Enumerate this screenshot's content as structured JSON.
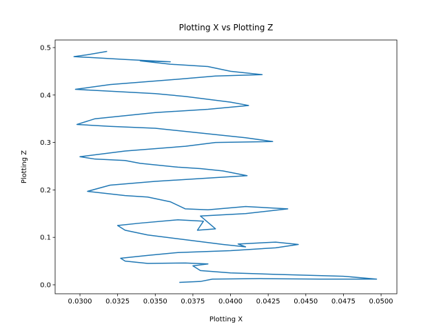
{
  "chart_data": {
    "type": "line",
    "title": "Plotting X vs Plotting Z",
    "x_label": "Plotting X",
    "y_label": "Plotting Z",
    "x": [
      0.0366,
      0.038,
      0.0388,
      0.042,
      0.046,
      0.0497,
      0.0475,
      0.043,
      0.04,
      0.038,
      0.0375,
      0.0385,
      0.037,
      0.0345,
      0.033,
      0.0327,
      0.0345,
      0.0365,
      0.04,
      0.043,
      0.0445,
      0.043,
      0.0405,
      0.041,
      0.0395,
      0.037,
      0.0345,
      0.033,
      0.0325,
      0.034,
      0.0365,
      0.0382,
      0.0378,
      0.039,
      0.038,
      0.041,
      0.0438,
      0.041,
      0.0385,
      0.037,
      0.036,
      0.0345,
      0.033,
      0.0305,
      0.032,
      0.035,
      0.0385,
      0.0411,
      0.0395,
      0.038,
      0.0365,
      0.034,
      0.033,
      0.031,
      0.03,
      0.033,
      0.037,
      0.039,
      0.0428,
      0.041,
      0.038,
      0.035,
      0.032,
      0.0298,
      0.031,
      0.035,
      0.0385,
      0.0412,
      0.04,
      0.037,
      0.035,
      0.032,
      0.0297,
      0.032,
      0.036,
      0.039,
      0.0421,
      0.04,
      0.0385,
      0.036,
      0.034,
      0.036,
      0.033,
      0.0296,
      0.0305,
      0.0318
    ],
    "series": [
      {
        "color": "#1f77b4",
        "values": [
          0.005,
          0.007,
          0.012,
          0.013,
          0.012,
          0.012,
          0.018,
          0.022,
          0.025,
          0.03,
          0.04,
          0.044,
          0.046,
          0.045,
          0.05,
          0.056,
          0.062,
          0.068,
          0.072,
          0.078,
          0.085,
          0.09,
          0.086,
          0.08,
          0.085,
          0.095,
          0.105,
          0.115,
          0.125,
          0.13,
          0.137,
          0.134,
          0.115,
          0.118,
          0.145,
          0.15,
          0.16,
          0.165,
          0.158,
          0.16,
          0.175,
          0.185,
          0.188,
          0.197,
          0.21,
          0.218,
          0.225,
          0.23,
          0.24,
          0.245,
          0.248,
          0.256,
          0.262,
          0.265,
          0.27,
          0.282,
          0.292,
          0.3,
          0.302,
          0.31,
          0.32,
          0.33,
          0.334,
          0.338,
          0.35,
          0.363,
          0.37,
          0.378,
          0.385,
          0.397,
          0.403,
          0.408,
          0.412,
          0.422,
          0.432,
          0.44,
          0.443,
          0.45,
          0.46,
          0.465,
          0.472,
          0.47,
          0.475,
          0.481,
          0.485,
          0.492
        ]
      }
    ],
    "xlim": [
      0.02835,
      0.05105
    ],
    "ylim": [
      -0.0189,
      0.516
    ],
    "xticks": [
      {
        "value": 0.03,
        "label": "0.0300"
      },
      0.0325,
      {
        "value": 0.035,
        "label": "0.0350"
      },
      0.0375,
      {
        "value": 0.04,
        "label": "0.0400"
      },
      0.0425,
      {
        "value": 0.045,
        "label": "0.0450"
      },
      0.0475,
      {
        "value": 0.05,
        "label": "0.0500"
      }
    ],
    "yticks": [
      {
        "value": 0,
        "label": "0.0"
      },
      0.1,
      0.2,
      0.3,
      0.4,
      0.5
    ]
  }
}
